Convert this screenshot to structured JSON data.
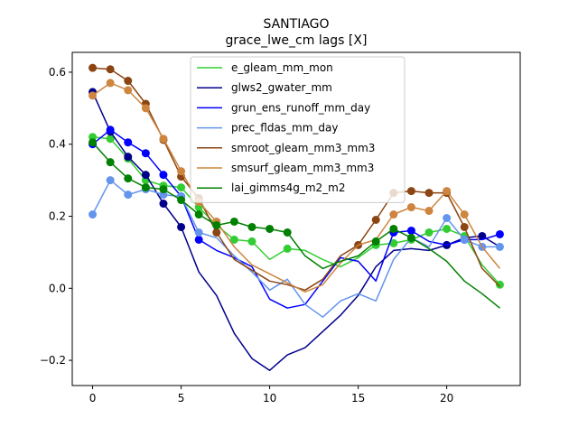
{
  "chart_data": {
    "type": "line",
    "title": "SANTIAGO",
    "subtitle": "grace_lwe_cm lags [X]",
    "xlabel": "",
    "ylabel": "",
    "xlim": [
      -1.15,
      24.15
    ],
    "ylim": [
      -0.27,
      0.655
    ],
    "xticks": [
      0,
      5,
      10,
      15,
      20
    ],
    "yticks": [
      -0.2,
      0.0,
      0.2,
      0.4,
      0.6
    ],
    "xtick_labels": [
      "0",
      "5",
      "10",
      "15",
      "20"
    ],
    "ytick_labels": [
      "−0.2",
      "0.0",
      "0.2",
      "0.4",
      "0.6"
    ],
    "grid": false,
    "legend_position": "top-center",
    "x": [
      0,
      1,
      2,
      3,
      4,
      5,
      6,
      7,
      8,
      9,
      10,
      11,
      12,
      13,
      14,
      15,
      16,
      17,
      18,
      19,
      20,
      21,
      22,
      23
    ],
    "series": [
      {
        "name": "e_gleam_mm_mon",
        "color": "#32cd32",
        "values": [
          0.42,
          0.415,
          0.36,
          0.3,
          0.285,
          0.28,
          0.225,
          0.175,
          0.135,
          0.13,
          0.08,
          0.11,
          0.105,
          0.08,
          0.06,
          0.085,
          0.12,
          0.125,
          0.135,
          0.155,
          0.165,
          0.145,
          0.065,
          0.01
        ],
        "markers": [
          0,
          1,
          2,
          3,
          4,
          5,
          6,
          7,
          8,
          9,
          11,
          16,
          17,
          18,
          19,
          20,
          21,
          23
        ]
      },
      {
        "name": "glws2_gwater_mm",
        "color": "#00008b",
        "values": [
          0.545,
          0.435,
          0.365,
          0.315,
          0.235,
          0.17,
          0.045,
          -0.02,
          -0.125,
          -0.195,
          -0.228,
          -0.185,
          -0.165,
          -0.12,
          -0.075,
          -0.02,
          0.06,
          0.105,
          0.11,
          0.105,
          0.12,
          0.14,
          0.145,
          0.115
        ],
        "markers": [
          0,
          1,
          2,
          3,
          4,
          5,
          20,
          22
        ]
      },
      {
        "name": "grun_ens_runoff_mm_day",
        "color": "#0000ff",
        "values": [
          0.4,
          0.44,
          0.405,
          0.375,
          0.315,
          0.255,
          0.135,
          0.105,
          0.085,
          0.06,
          -0.03,
          -0.055,
          -0.045,
          0.02,
          0.085,
          0.075,
          0.02,
          0.155,
          0.16,
          0.13,
          0.12,
          0.135,
          0.135,
          0.15
        ],
        "markers": [
          0,
          1,
          2,
          3,
          4,
          5,
          6,
          17,
          18,
          21,
          23
        ]
      },
      {
        "name": "prec_fldas_mm_day",
        "color": "#6495ed",
        "values": [
          0.205,
          0.3,
          0.26,
          0.275,
          0.26,
          0.255,
          0.155,
          0.14,
          0.09,
          0.045,
          -0.005,
          0.025,
          -0.045,
          -0.08,
          -0.035,
          -0.015,
          -0.035,
          0.08,
          0.14,
          0.115,
          0.195,
          0.135,
          0.115,
          0.115
        ],
        "markers": [
          0,
          1,
          2,
          3,
          4,
          5,
          6,
          20,
          21,
          22,
          23
        ]
      },
      {
        "name": "smroot_gleam_mm3_mm3",
        "color": "#8b4513",
        "values": [
          0.612,
          0.608,
          0.576,
          0.512,
          0.412,
          0.31,
          0.25,
          0.155,
          0.08,
          0.05,
          0.02,
          0.01,
          -0.005,
          0.025,
          0.09,
          0.12,
          0.19,
          0.265,
          0.27,
          0.265,
          0.265,
          0.17,
          0.055,
          0.005
        ],
        "markers": [
          0,
          1,
          2,
          3,
          4,
          5,
          6,
          7,
          15,
          16,
          17,
          18,
          19,
          20,
          21
        ]
      },
      {
        "name": "smsurf_gleam_mm3_mm3",
        "color": "#cd853f",
        "values": [
          0.535,
          0.57,
          0.55,
          0.5,
          0.415,
          0.325,
          0.24,
          0.185,
          0.115,
          0.065,
          0.04,
          0.015,
          -0.01,
          0.01,
          0.07,
          0.12,
          0.135,
          0.205,
          0.225,
          0.215,
          0.27,
          0.205,
          0.115,
          0.055
        ],
        "markers": [
          0,
          1,
          2,
          3,
          4,
          5,
          6,
          7,
          17,
          18,
          19,
          20,
          21
        ]
      },
      {
        "name": "lai_gimms4g_m2_m2",
        "color": "#008000",
        "values": [
          0.405,
          0.35,
          0.305,
          0.28,
          0.275,
          0.245,
          0.205,
          0.175,
          0.185,
          0.17,
          0.165,
          0.155,
          0.09,
          0.055,
          0.075,
          0.09,
          0.13,
          0.165,
          0.14,
          0.11,
          0.075,
          0.02,
          -0.015,
          -0.055
        ],
        "markers": [
          0,
          1,
          2,
          3,
          4,
          5,
          6,
          7,
          8,
          9,
          10,
          11,
          16,
          17,
          18
        ]
      }
    ]
  }
}
